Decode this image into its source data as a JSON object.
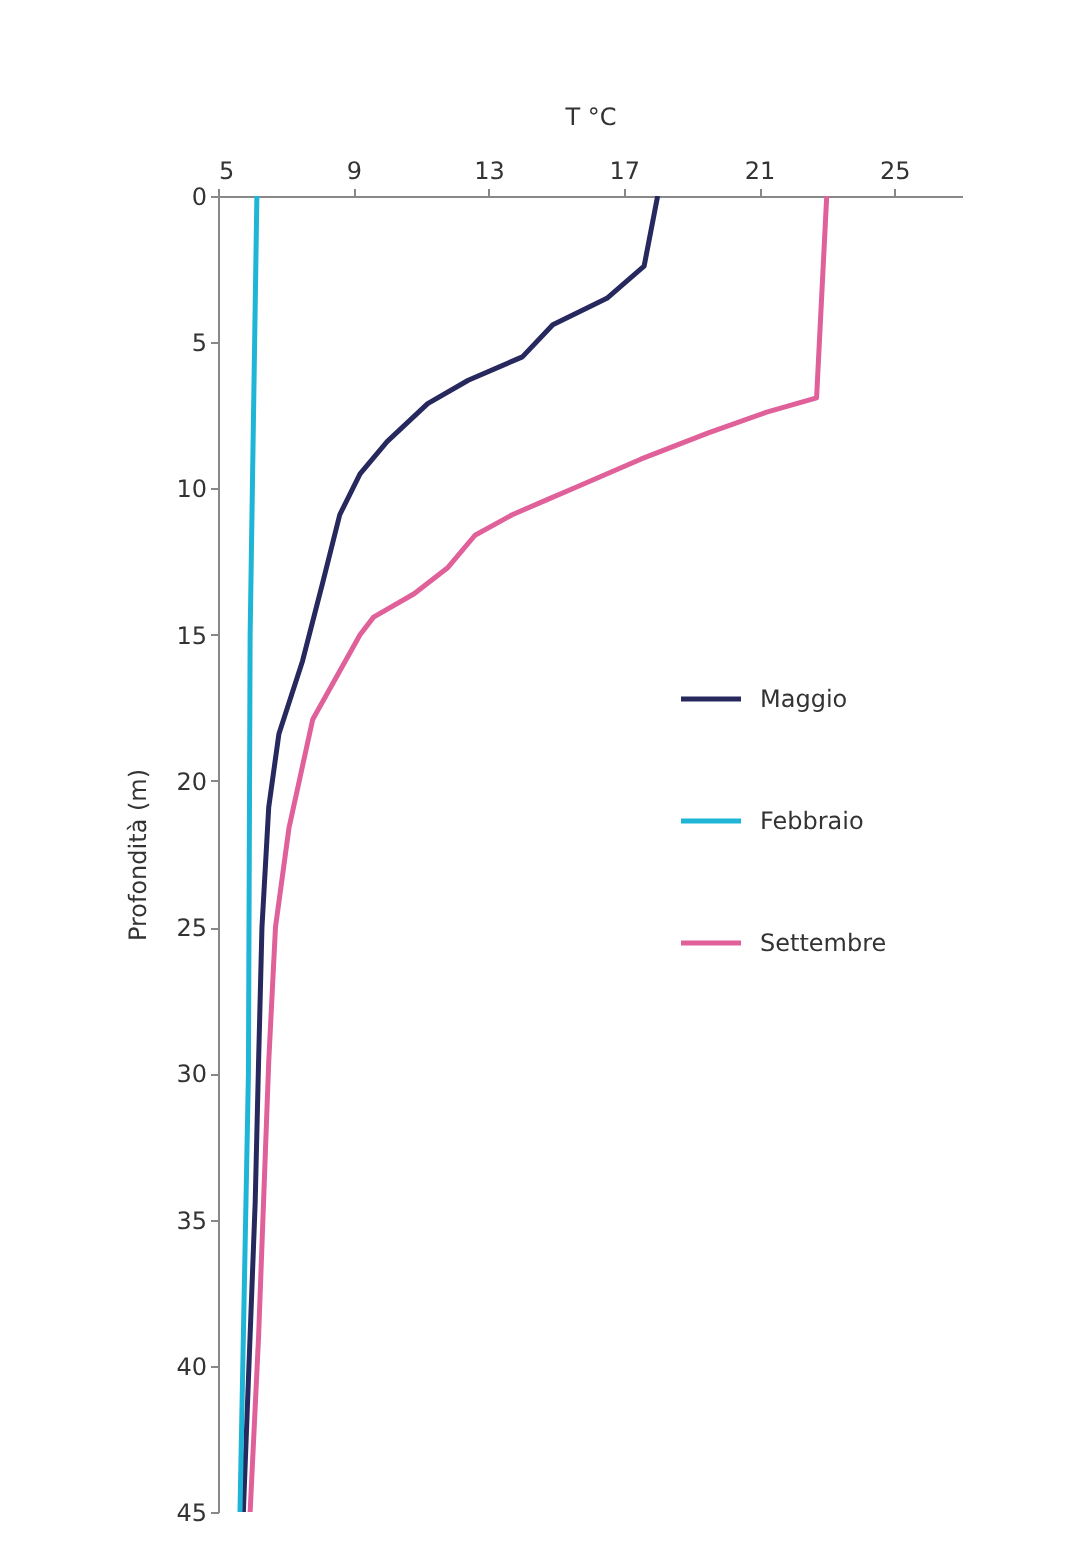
{
  "chart_data": {
    "type": "line",
    "xlabel": "T °C",
    "ylabel": "Profondità (m)",
    "xlim": [
      5,
      27
    ],
    "xticks": [
      5,
      9,
      13,
      17,
      21,
      25
    ],
    "ylim": [
      45,
      0
    ],
    "yticks": [
      0,
      5,
      10,
      15,
      20,
      25,
      30,
      35,
      40,
      45
    ],
    "grid": false,
    "legend": "right",
    "marker": "none",
    "line_style": "solid",
    "series": [
      {
        "name": "Maggio",
        "color": "#26285e",
        "x": [
          18.0,
          17.6,
          16.9,
          16.5,
          14.9,
          14.0,
          12.4,
          11.2,
          10.0,
          9.2,
          8.6,
          8.1,
          7.5,
          6.8,
          6.5,
          6.3,
          6.2,
          6.1,
          5.75
        ],
        "values": [
          0,
          2.4,
          3.1,
          3.5,
          4.4,
          5.5,
          6.3,
          7.1,
          8.4,
          9.5,
          10.9,
          13.2,
          15.9,
          18.4,
          20.9,
          25.0,
          29.6,
          34.4,
          45
        ]
      },
      {
        "name": "Febbraio",
        "color": "#1fb5d6",
        "x": [
          6.15,
          5.95,
          5.9,
          5.65
        ],
        "values": [
          0,
          15,
          30,
          45
        ]
      },
      {
        "name": "Settembre",
        "color": "#e0609a",
        "x": [
          23.0,
          22.7,
          21.2,
          19.5,
          17.5,
          15.5,
          14.7,
          13.7,
          12.6,
          11.8,
          10.8,
          9.6,
          9.2,
          7.8,
          7.1,
          6.7,
          6.5,
          6.2,
          5.95
        ],
        "values": [
          0,
          6.9,
          7.4,
          8.1,
          9.0,
          10.0,
          10.4,
          10.9,
          11.6,
          12.7,
          13.6,
          14.4,
          15.0,
          17.9,
          21.6,
          25.0,
          29.6,
          39.0,
          45
        ]
      }
    ]
  }
}
